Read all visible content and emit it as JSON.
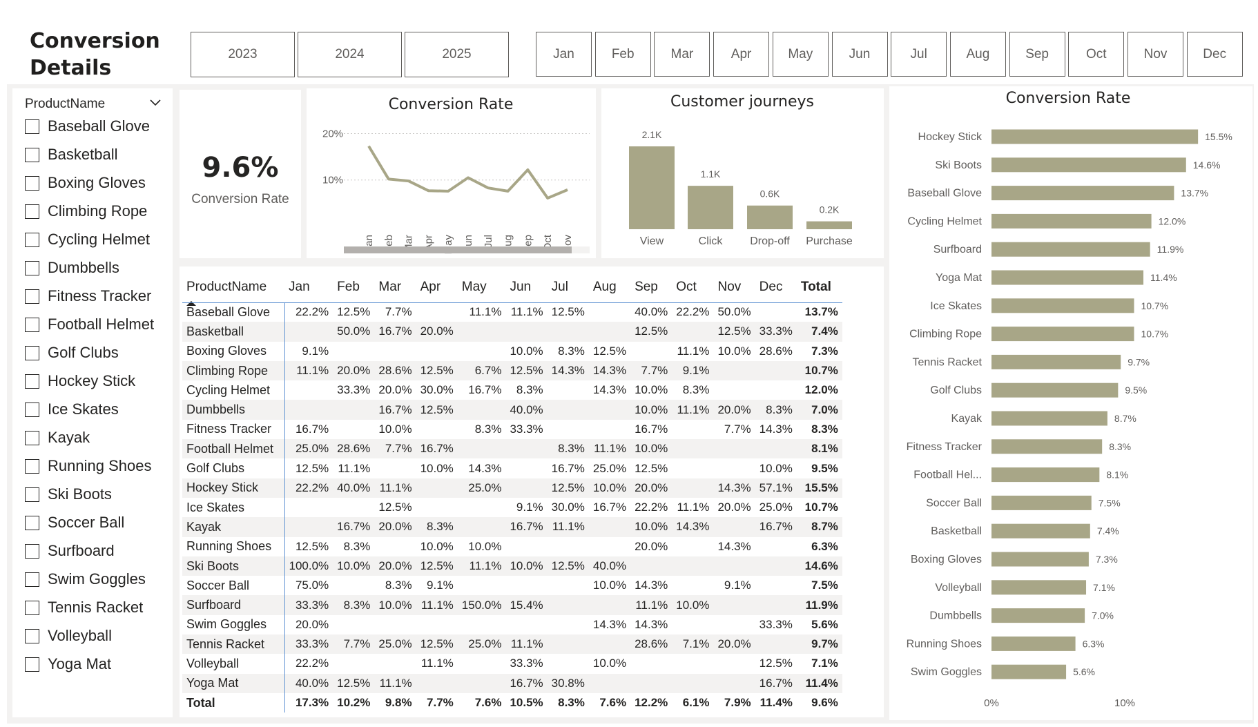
{
  "page": {
    "title_line1": "Conversion",
    "title_line2": "Details"
  },
  "years": [
    "2023",
    "2024",
    "2025"
  ],
  "months": [
    "Jan",
    "Feb",
    "Mar",
    "Apr",
    "May",
    "Jun",
    "Jul",
    "Aug",
    "Sep",
    "Oct",
    "Nov",
    "Dec"
  ],
  "product_slicer": {
    "header": "ProductName",
    "items": [
      "Baseball Glove",
      "Basketball",
      "Boxing Gloves",
      "Climbing Rope",
      "Cycling Helmet",
      "Dumbbells",
      "Fitness Tracker",
      "Football Helmet",
      "Golf Clubs",
      "Hockey Stick",
      "Ice Skates",
      "Kayak",
      "Running Shoes",
      "Ski Boots",
      "Soccer Ball",
      "Surfboard",
      "Swim Goggles",
      "Tennis Racket",
      "Volleyball",
      "Yoga Mat"
    ]
  },
  "kpi": {
    "value": "9.6%",
    "label": "Conversion Rate"
  },
  "colors": {
    "bar": "#a8a687",
    "line": "#a8a687",
    "scroll": "#b3b0ad",
    "accent": "#5b8fd1"
  },
  "chart_data": [
    {
      "type": "line",
      "title": "Conversion Rate",
      "categories": [
        "Jan",
        "Feb",
        "Mar",
        "Apr",
        "May",
        "Jun",
        "Jul",
        "Aug",
        "Sep",
        "Oct",
        "Nov"
      ],
      "values": [
        17.3,
        10.2,
        9.8,
        7.7,
        7.6,
        10.5,
        8.3,
        7.6,
        12.2,
        6.1,
        7.9
      ],
      "y_ticks": [
        "10%",
        "20%"
      ],
      "ylim": [
        0,
        22
      ],
      "grid": true
    },
    {
      "type": "bar",
      "title": "Customer journeys",
      "categories": [
        "View",
        "Click",
        "Drop-off",
        "Purchase"
      ],
      "values": [
        2.1,
        1.1,
        0.6,
        0.2
      ],
      "data_labels": [
        "2.1K",
        "1.1K",
        "0.6K",
        "0.2K"
      ]
    },
    {
      "type": "bar",
      "orientation": "horizontal",
      "title": "Conversion Rate",
      "categories": [
        "Hockey Stick",
        "Ski Boots",
        "Baseball Glove",
        "Cycling Helmet",
        "Surfboard",
        "Yoga Mat",
        "Ice Skates",
        "Climbing Rope",
        "Tennis Racket",
        "Golf Clubs",
        "Kayak",
        "Fitness Tracker",
        "Football Hel...",
        "Soccer Ball",
        "Basketball",
        "Boxing Gloves",
        "Volleyball",
        "Dumbbells",
        "Running Shoes",
        "Swim Goggles"
      ],
      "values": [
        15.5,
        14.6,
        13.7,
        12.0,
        11.9,
        11.4,
        10.7,
        10.7,
        9.7,
        9.5,
        8.7,
        8.3,
        8.1,
        7.5,
        7.4,
        7.3,
        7.1,
        7.0,
        6.3,
        5.6
      ],
      "data_labels": [
        "15.5%",
        "14.6%",
        "13.7%",
        "12.0%",
        "11.9%",
        "11.4%",
        "10.7%",
        "10.7%",
        "9.7%",
        "9.5%",
        "8.7%",
        "8.3%",
        "8.1%",
        "7.5%",
        "7.4%",
        "7.3%",
        "7.1%",
        "7.0%",
        "6.3%",
        "5.6%"
      ],
      "x_ticks": [
        "0%",
        "10%"
      ],
      "xlim": [
        0,
        17
      ]
    }
  ],
  "matrix": {
    "headers": [
      "ProductName",
      "Jan",
      "Feb",
      "Mar",
      "Apr",
      "May",
      "Jun",
      "Jul",
      "Aug",
      "Sep",
      "Oct",
      "Nov",
      "Dec",
      "Total"
    ],
    "rows": [
      [
        "Baseball Glove",
        "22.2%",
        "12.5%",
        "7.7%",
        "",
        "11.1%",
        "11.1%",
        "12.5%",
        "",
        "40.0%",
        "22.2%",
        "50.0%",
        "",
        "13.7%"
      ],
      [
        "Basketball",
        "",
        "50.0%",
        "16.7%",
        "20.0%",
        "",
        "",
        "",
        "",
        "12.5%",
        "",
        "12.5%",
        "33.3%",
        "7.4%"
      ],
      [
        "Boxing Gloves",
        "9.1%",
        "",
        "",
        "",
        "",
        "10.0%",
        "8.3%",
        "12.5%",
        "",
        "11.1%",
        "10.0%",
        "28.6%",
        "7.3%"
      ],
      [
        "Climbing Rope",
        "11.1%",
        "20.0%",
        "28.6%",
        "12.5%",
        "6.7%",
        "12.5%",
        "14.3%",
        "14.3%",
        "7.7%",
        "9.1%",
        "",
        "",
        "10.7%"
      ],
      [
        "Cycling Helmet",
        "",
        "33.3%",
        "20.0%",
        "30.0%",
        "16.7%",
        "8.3%",
        "",
        "14.3%",
        "10.0%",
        "8.3%",
        "",
        "",
        "12.0%"
      ],
      [
        "Dumbbells",
        "",
        "",
        "16.7%",
        "12.5%",
        "",
        "40.0%",
        "",
        "",
        "10.0%",
        "11.1%",
        "20.0%",
        "8.3%",
        "7.0%"
      ],
      [
        "Fitness Tracker",
        "16.7%",
        "",
        "10.0%",
        "",
        "8.3%",
        "33.3%",
        "",
        "",
        "16.7%",
        "",
        "7.7%",
        "14.3%",
        "8.3%"
      ],
      [
        "Football Helmet",
        "25.0%",
        "28.6%",
        "7.7%",
        "16.7%",
        "",
        "",
        "8.3%",
        "11.1%",
        "10.0%",
        "",
        "",
        "",
        "8.1%"
      ],
      [
        "Golf Clubs",
        "12.5%",
        "11.1%",
        "",
        "10.0%",
        "14.3%",
        "",
        "16.7%",
        "25.0%",
        "12.5%",
        "",
        "",
        "10.0%",
        "9.5%"
      ],
      [
        "Hockey Stick",
        "22.2%",
        "40.0%",
        "11.1%",
        "",
        "25.0%",
        "",
        "12.5%",
        "10.0%",
        "20.0%",
        "",
        "14.3%",
        "57.1%",
        "15.5%"
      ],
      [
        "Ice Skates",
        "",
        "",
        "12.5%",
        "",
        "",
        "9.1%",
        "30.0%",
        "16.7%",
        "22.2%",
        "11.1%",
        "20.0%",
        "25.0%",
        "10.7%"
      ],
      [
        "Kayak",
        "",
        "16.7%",
        "20.0%",
        "8.3%",
        "",
        "16.7%",
        "11.1%",
        "",
        "10.0%",
        "14.3%",
        "",
        "16.7%",
        "8.7%"
      ],
      [
        "Running Shoes",
        "12.5%",
        "8.3%",
        "",
        "10.0%",
        "10.0%",
        "",
        "",
        "",
        "20.0%",
        "",
        "14.3%",
        "",
        "6.3%"
      ],
      [
        "Ski Boots",
        "100.0%",
        "10.0%",
        "20.0%",
        "12.5%",
        "11.1%",
        "10.0%",
        "12.5%",
        "40.0%",
        "",
        "",
        "",
        "",
        "14.6%"
      ],
      [
        "Soccer Ball",
        "75.0%",
        "",
        "8.3%",
        "9.1%",
        "",
        "",
        "",
        "10.0%",
        "14.3%",
        "",
        "9.1%",
        "",
        "7.5%"
      ],
      [
        "Surfboard",
        "33.3%",
        "8.3%",
        "10.0%",
        "11.1%",
        "150.0%",
        "15.4%",
        "",
        "",
        "11.1%",
        "10.0%",
        "",
        "",
        "11.9%"
      ],
      [
        "Swim Goggles",
        "20.0%",
        "",
        "",
        "",
        "",
        "",
        "",
        "14.3%",
        "14.3%",
        "",
        "",
        "33.3%",
        "5.6%"
      ],
      [
        "Tennis Racket",
        "33.3%",
        "7.7%",
        "25.0%",
        "12.5%",
        "25.0%",
        "11.1%",
        "",
        "",
        "28.6%",
        "7.1%",
        "20.0%",
        "",
        "9.7%"
      ],
      [
        "Volleyball",
        "22.2%",
        "",
        "",
        "11.1%",
        "",
        "33.3%",
        "",
        "10.0%",
        "",
        "",
        "",
        "12.5%",
        "7.1%"
      ],
      [
        "Yoga Mat",
        "40.0%",
        "12.5%",
        "11.1%",
        "",
        "",
        "16.7%",
        "30.8%",
        "",
        "",
        "",
        "",
        "16.7%",
        "11.4%"
      ]
    ],
    "total_row": [
      "Total",
      "17.3%",
      "10.2%",
      "9.8%",
      "7.7%",
      "7.6%",
      "10.5%",
      "8.3%",
      "7.6%",
      "12.2%",
      "6.1%",
      "7.9%",
      "11.4%",
      "9.6%"
    ]
  }
}
